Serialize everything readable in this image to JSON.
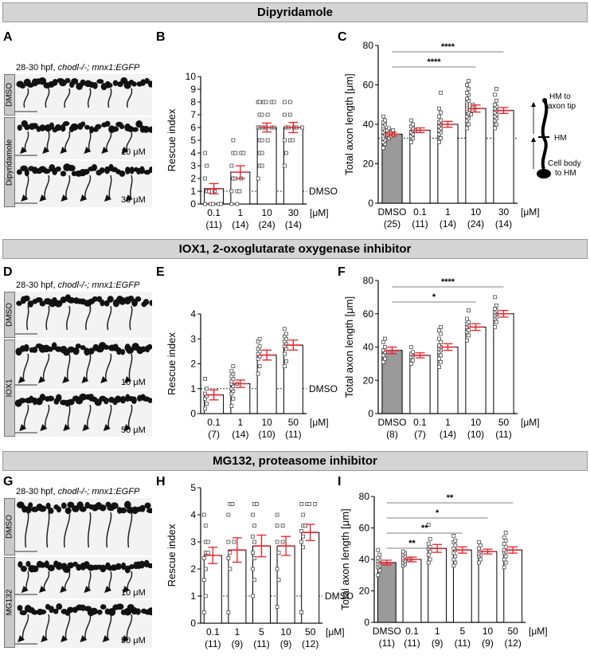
{
  "sections": [
    {
      "title": "Dipyridamole"
    },
    {
      "title": "IOX1, 2-oxoglutarate oxygenase inhibitor"
    },
    {
      "title": "MG132, proteasome inhibitor"
    }
  ],
  "panels": {
    "A": {
      "label": "A",
      "title_prefix": "28-30 hpf, ",
      "title_genotype": "chodl-/-; mnx1:EGFP",
      "rows": [
        {
          "side": "DMSO",
          "conc": ""
        },
        {
          "side": "Dipyridamole",
          "conc": "10 μM"
        },
        {
          "side": "",
          "conc": "30 μM"
        }
      ]
    },
    "D": {
      "label": "D",
      "title_prefix": "28-30 hpf, ",
      "title_genotype": "chodl-/-; mnx1:EGFP",
      "rows": [
        {
          "side": "DMSO",
          "conc": ""
        },
        {
          "side": "IOX1",
          "conc": "10 μM"
        },
        {
          "side": "",
          "conc": "50 μM"
        }
      ]
    },
    "G": {
      "label": "G",
      "title_prefix": "28-30 hpf, ",
      "title_genotype": "chodl-/-; mnx1:EGFP",
      "rows": [
        {
          "side": "DMSO",
          "conc": ""
        },
        {
          "side": "MG132",
          "conc": "10 μM"
        },
        {
          "side": "",
          "conc": "50 μM"
        }
      ]
    },
    "schematic": {
      "top": "HM to\naxon tip",
      "mid": "HM",
      "bottom": "Cell body\nto HM"
    }
  },
  "chart_data": [
    {
      "id": "B",
      "type": "bar",
      "ylabel": "Rescue index",
      "ylim": [
        0,
        10
      ],
      "yticks": [
        0,
        1,
        2,
        3,
        4,
        5,
        6,
        7,
        8,
        9,
        10
      ],
      "categories": [
        "0.1",
        "1",
        "10",
        "30"
      ],
      "ns": [
        "(11)",
        "(14)",
        "(24)",
        "(14)"
      ],
      "unit": "[μM]",
      "values": [
        1.2,
        2.5,
        6.0,
        6.0
      ],
      "sem": [
        0.4,
        0.5,
        0.35,
        0.4
      ],
      "reference_line": {
        "y": 1,
        "label": "DMSO"
      },
      "points": [
        [
          0,
          0,
          0,
          0,
          0,
          1,
          1,
          1,
          2,
          3,
          4
        ],
        [
          0,
          0,
          1,
          1,
          1,
          2,
          2,
          2,
          3,
          4,
          4,
          4,
          4,
          5
        ],
        [
          2,
          3,
          3,
          4,
          4,
          5,
          5,
          5,
          6,
          6,
          6,
          6,
          6,
          6,
          6,
          7,
          7,
          7,
          8,
          8,
          8,
          8,
          8,
          8
        ],
        [
          3,
          4,
          5,
          5,
          5,
          6,
          6,
          6,
          6,
          6,
          7,
          7,
          8,
          8
        ]
      ]
    },
    {
      "id": "C",
      "type": "bar",
      "ylabel": "Total axon length [μm]",
      "ylim": [
        0,
        80
      ],
      "yticks": [
        0,
        20,
        40,
        60,
        80
      ],
      "categories": [
        "DMSO",
        "0.1",
        "1",
        "10",
        "30"
      ],
      "ns": [
        "(25)",
        "(11)",
        "(14)",
        "(24)",
        "(14)"
      ],
      "unit": "[μM]",
      "values": [
        35,
        37,
        40,
        48,
        47
      ],
      "sem": [
        1.0,
        1.2,
        1.5,
        1.8,
        1.5
      ],
      "filled": [
        true,
        false,
        false,
        false,
        false
      ],
      "reference_line": {
        "y": 33,
        "label": ""
      },
      "significance": [
        {
          "from": 0,
          "to": 4,
          "label": "****"
        },
        {
          "from": 0,
          "to": 3,
          "label": "****"
        }
      ],
      "points": [
        [
          28,
          30,
          31,
          32,
          33,
          33,
          34,
          34,
          34,
          35,
          35,
          35,
          36,
          36,
          36,
          37,
          37,
          37,
          38,
          38,
          39,
          40,
          41,
          42,
          44
        ],
        [
          31,
          33,
          34,
          35,
          36,
          37,
          37,
          38,
          39,
          40,
          42
        ],
        [
          31,
          33,
          35,
          36,
          37,
          38,
          39,
          40,
          41,
          42,
          44,
          46,
          48,
          56
        ],
        [
          38,
          40,
          42,
          43,
          44,
          45,
          45,
          46,
          47,
          47,
          48,
          48,
          49,
          49,
          50,
          50,
          51,
          52,
          53,
          55,
          56,
          58,
          60,
          62
        ],
        [
          38,
          40,
          42,
          43,
          44,
          45,
          46,
          47,
          48,
          49,
          50,
          52,
          55,
          58
        ]
      ]
    },
    {
      "id": "E",
      "type": "bar",
      "ylabel": "Rescue index",
      "ylim": [
        0,
        4
      ],
      "yticks": [
        0,
        1,
        2,
        3,
        4
      ],
      "categories": [
        "0.1",
        "1",
        "10",
        "50"
      ],
      "ns": [
        "(7)",
        "(14)",
        "(10)",
        "(11)"
      ],
      "unit": "[μM]",
      "values": [
        0.75,
        1.2,
        2.35,
        2.75
      ],
      "sem": [
        0.2,
        0.15,
        0.2,
        0.2
      ],
      "reference_line": {
        "y": 1,
        "label": "DMSO"
      },
      "points": [
        [
          0.2,
          0.4,
          0.6,
          0.7,
          0.8,
          1.0,
          1.4
        ],
        [
          0.3,
          0.6,
          0.8,
          0.9,
          1.0,
          1.1,
          1.2,
          1.2,
          1.3,
          1.4,
          1.5,
          1.6,
          1.7,
          1.9
        ],
        [
          1.6,
          1.9,
          2.2,
          2.3,
          2.4,
          2.5,
          2.6,
          2.7,
          2.9,
          3.0
        ],
        [
          1.9,
          2.1,
          2.4,
          2.6,
          2.7,
          2.8,
          2.9,
          3.0,
          3.1,
          3.2,
          3.4
        ]
      ]
    },
    {
      "id": "F",
      "type": "bar",
      "ylabel": "Total axon length [μm]",
      "ylim": [
        0,
        80
      ],
      "yticks": [
        0,
        20,
        40,
        60,
        80
      ],
      "categories": [
        "DMSO",
        "0.1",
        "1",
        "10",
        "50"
      ],
      "ns": [
        "(8)",
        "(7)",
        "(14)",
        "(10)",
        "(11)"
      ],
      "unit": "[μM]",
      "values": [
        38,
        35,
        40,
        52,
        60
      ],
      "sem": [
        2.0,
        1.5,
        2.0,
        2.0,
        2.0
      ],
      "filled": [
        true,
        false,
        false,
        false,
        false
      ],
      "significance": [
        {
          "from": 0,
          "to": 4,
          "label": "****"
        },
        {
          "from": 0,
          "to": 3,
          "label": "*"
        }
      ],
      "points": [
        [
          31,
          33,
          35,
          37,
          38,
          40,
          43,
          45
        ],
        [
          30,
          32,
          34,
          35,
          36,
          37,
          40
        ],
        [
          28,
          31,
          33,
          35,
          37,
          38,
          39,
          40,
          41,
          43,
          45,
          48,
          50,
          52
        ],
        [
          44,
          47,
          49,
          50,
          52,
          53,
          54,
          55,
          57,
          62
        ],
        [
          52,
          55,
          57,
          58,
          59,
          60,
          61,
          62,
          63,
          65,
          70
        ]
      ]
    },
    {
      "id": "H",
      "type": "bar",
      "ylabel": "Rescue index",
      "ylim": [
        0,
        5
      ],
      "yticks": [
        0,
        1,
        2,
        3,
        4,
        5
      ],
      "categories": [
        "0.1",
        "1",
        "5",
        "10",
        "50"
      ],
      "ns": [
        "(11)",
        "(9)",
        "(11)",
        "(9)",
        "(12)"
      ],
      "unit": "[μM]",
      "values": [
        2.5,
        2.7,
        2.85,
        2.85,
        3.35
      ],
      "sem": [
        0.3,
        0.45,
        0.4,
        0.35,
        0.3
      ],
      "reference_line": {
        "y": 1,
        "label": "DMSO"
      },
      "points": [
        [
          0.4,
          1.0,
          1.6,
          2.0,
          2.4,
          2.6,
          2.6,
          3.0,
          3.0,
          3.6,
          4.0
        ],
        [
          0.4,
          2.0,
          2.4,
          2.6,
          3.0,
          3.0,
          4.0,
          4.4,
          4.4
        ],
        [
          1.0,
          1.6,
          2.0,
          2.4,
          2.6,
          3.0,
          3.2,
          3.6,
          4.0,
          4.4,
          4.4
        ],
        [
          0.6,
          1.6,
          2.0,
          2.6,
          3.0,
          3.0,
          3.6,
          3.6,
          4.0
        ],
        [
          0.4,
          2.8,
          3.0,
          3.2,
          3.4,
          3.6,
          3.6,
          4.0,
          4.4,
          4.4,
          4.4,
          4.4
        ]
      ]
    },
    {
      "id": "I",
      "type": "bar",
      "ylabel": "Total axon length [μm]",
      "ylim": [
        0,
        80
      ],
      "yticks": [
        0,
        20,
        40,
        60,
        80
      ],
      "categories": [
        "DMSO",
        "0.1",
        "1",
        "5",
        "10",
        "50"
      ],
      "ns": [
        "(11)",
        "(11)",
        "(9)",
        "(11)",
        "(9)",
        "(12)"
      ],
      "unit": "[μM]",
      "values": [
        38,
        40,
        47,
        46,
        45,
        46
      ],
      "sem": [
        1.5,
        1.5,
        2.5,
        2.0,
        1.5,
        2.0
      ],
      "filled": [
        true,
        false,
        false,
        false,
        false,
        false
      ],
      "significance": [
        {
          "from": 0,
          "to": 5,
          "label": "**"
        },
        {
          "from": 0,
          "to": 4,
          "label": "*"
        },
        {
          "from": 0,
          "to": 3,
          "label": "**"
        },
        {
          "from": 0,
          "to": 2,
          "label": "**"
        }
      ],
      "points": [
        [
          30,
          33,
          35,
          36,
          37,
          38,
          39,
          40,
          41,
          43,
          46
        ],
        [
          36,
          37,
          38,
          39,
          40,
          40,
          41,
          42,
          43,
          44,
          45
        ],
        [
          38,
          40,
          43,
          45,
          47,
          48,
          50,
          53,
          62
        ],
        [
          36,
          38,
          40,
          42,
          44,
          46,
          47,
          49,
          51,
          52,
          55
        ],
        [
          38,
          40,
          42,
          43,
          44,
          45,
          47,
          49,
          51
        ],
        [
          35,
          38,
          40,
          42,
          44,
          45,
          46,
          48,
          50,
          52,
          54,
          57
        ]
      ]
    }
  ],
  "colors": {
    "significance_red": "#e8202a",
    "filled_bar": "#9a9a9a"
  }
}
